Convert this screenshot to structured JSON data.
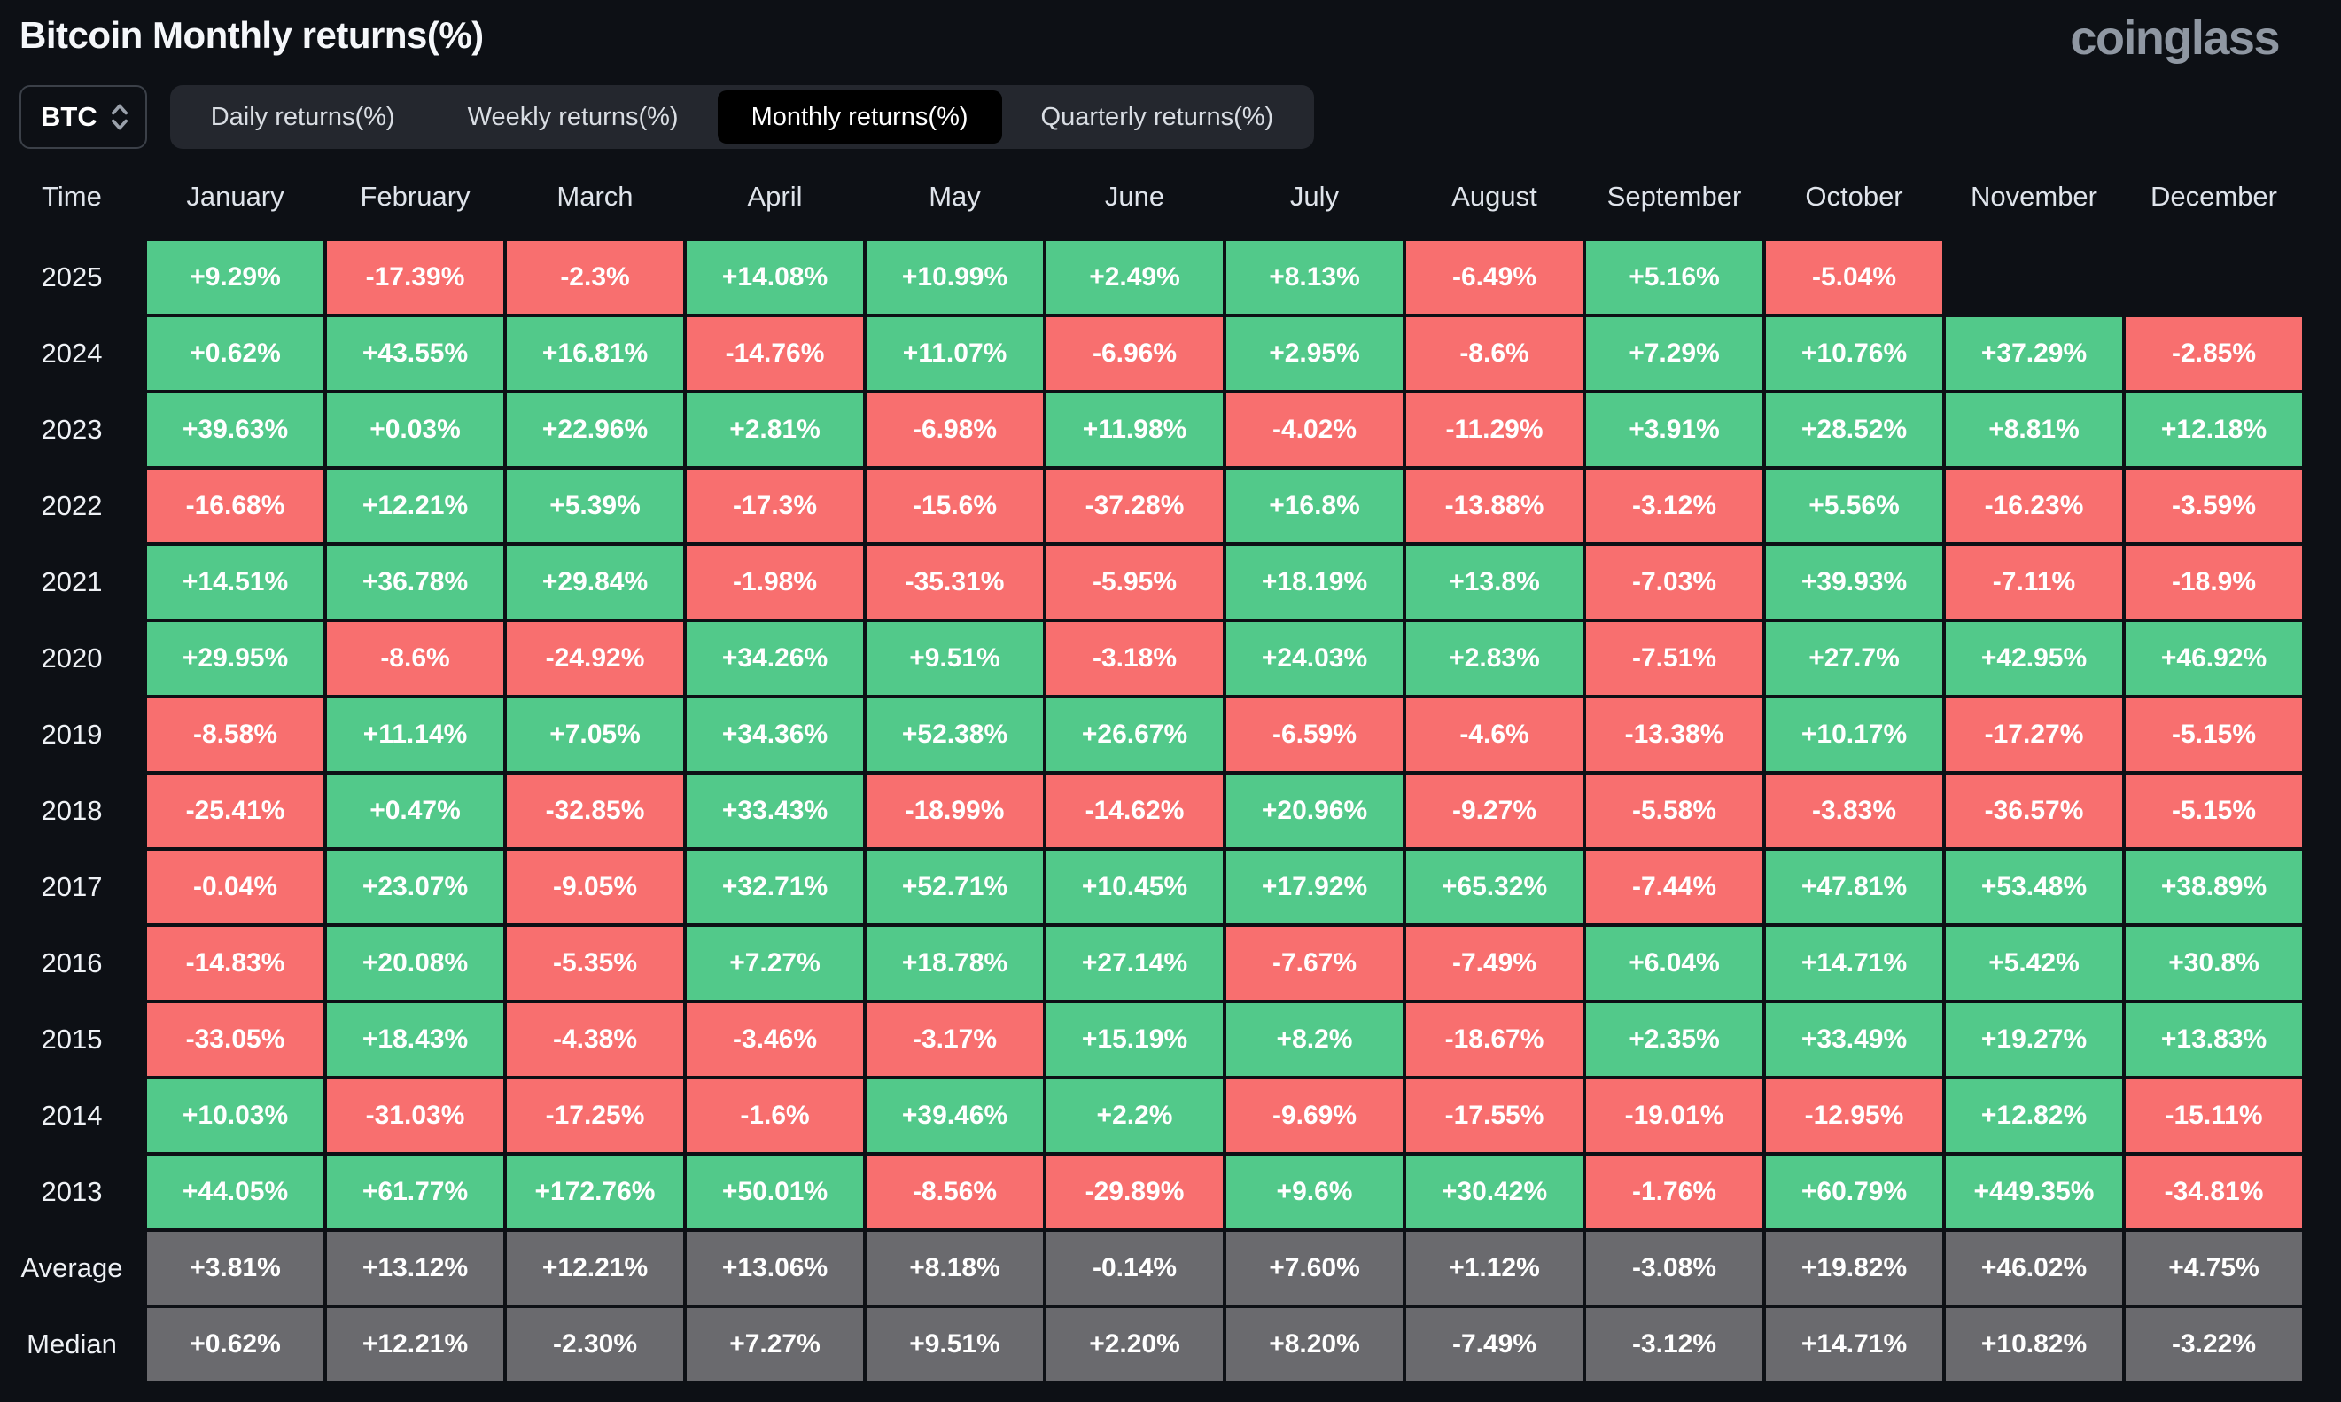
{
  "page": {
    "title": "Bitcoin Monthly returns(%)",
    "logo": "coinglass"
  },
  "controls": {
    "symbol_select": {
      "value": "BTC",
      "icon": "up-down-chevron-icon"
    },
    "tabs": [
      {
        "label": "Daily returns(%)",
        "active": false
      },
      {
        "label": "Weekly returns(%)",
        "active": false
      },
      {
        "label": "Monthly returns(%)",
        "active": true
      },
      {
        "label": "Quarterly returns(%)",
        "active": false
      }
    ]
  },
  "colors": {
    "positive": "#52c98a",
    "negative": "#f86f6f",
    "neutral": "#6a6a6e",
    "background": "#0d1015",
    "tab_bar": "#24272e",
    "tab_active": "#000000"
  },
  "table": {
    "columns": [
      "Time",
      "January",
      "February",
      "March",
      "April",
      "May",
      "June",
      "July",
      "August",
      "September",
      "October",
      "November",
      "December"
    ],
    "rows": [
      {
        "label": "2025",
        "kind": "year",
        "cells": [
          "+9.29%",
          "-17.39%",
          "-2.3%",
          "+14.08%",
          "+10.99%",
          "+2.49%",
          "+8.13%",
          "-6.49%",
          "+5.16%",
          "-5.04%",
          "",
          ""
        ]
      },
      {
        "label": "2024",
        "kind": "year",
        "cells": [
          "+0.62%",
          "+43.55%",
          "+16.81%",
          "-14.76%",
          "+11.07%",
          "-6.96%",
          "+2.95%",
          "-8.6%",
          "+7.29%",
          "+10.76%",
          "+37.29%",
          "-2.85%"
        ]
      },
      {
        "label": "2023",
        "kind": "year",
        "cells": [
          "+39.63%",
          "+0.03%",
          "+22.96%",
          "+2.81%",
          "-6.98%",
          "+11.98%",
          "-4.02%",
          "-11.29%",
          "+3.91%",
          "+28.52%",
          "+8.81%",
          "+12.18%"
        ]
      },
      {
        "label": "2022",
        "kind": "year",
        "cells": [
          "-16.68%",
          "+12.21%",
          "+5.39%",
          "-17.3%",
          "-15.6%",
          "-37.28%",
          "+16.8%",
          "-13.88%",
          "-3.12%",
          "+5.56%",
          "-16.23%",
          "-3.59%"
        ]
      },
      {
        "label": "2021",
        "kind": "year",
        "cells": [
          "+14.51%",
          "+36.78%",
          "+29.84%",
          "-1.98%",
          "-35.31%",
          "-5.95%",
          "+18.19%",
          "+13.8%",
          "-7.03%",
          "+39.93%",
          "-7.11%",
          "-18.9%"
        ]
      },
      {
        "label": "2020",
        "kind": "year",
        "cells": [
          "+29.95%",
          "-8.6%",
          "-24.92%",
          "+34.26%",
          "+9.51%",
          "-3.18%",
          "+24.03%",
          "+2.83%",
          "-7.51%",
          "+27.7%",
          "+42.95%",
          "+46.92%"
        ]
      },
      {
        "label": "2019",
        "kind": "year",
        "cells": [
          "-8.58%",
          "+11.14%",
          "+7.05%",
          "+34.36%",
          "+52.38%",
          "+26.67%",
          "-6.59%",
          "-4.6%",
          "-13.38%",
          "+10.17%",
          "-17.27%",
          "-5.15%"
        ]
      },
      {
        "label": "2018",
        "kind": "year",
        "cells": [
          "-25.41%",
          "+0.47%",
          "-32.85%",
          "+33.43%",
          "-18.99%",
          "-14.62%",
          "+20.96%",
          "-9.27%",
          "-5.58%",
          "-3.83%",
          "-36.57%",
          "-5.15%"
        ]
      },
      {
        "label": "2017",
        "kind": "year",
        "cells": [
          "-0.04%",
          "+23.07%",
          "-9.05%",
          "+32.71%",
          "+52.71%",
          "+10.45%",
          "+17.92%",
          "+65.32%",
          "-7.44%",
          "+47.81%",
          "+53.48%",
          "+38.89%"
        ]
      },
      {
        "label": "2016",
        "kind": "year",
        "cells": [
          "-14.83%",
          "+20.08%",
          "-5.35%",
          "+7.27%",
          "+18.78%",
          "+27.14%",
          "-7.67%",
          "-7.49%",
          "+6.04%",
          "+14.71%",
          "+5.42%",
          "+30.8%"
        ]
      },
      {
        "label": "2015",
        "kind": "year",
        "cells": [
          "-33.05%",
          "+18.43%",
          "-4.38%",
          "-3.46%",
          "-3.17%",
          "+15.19%",
          "+8.2%",
          "-18.67%",
          "+2.35%",
          "+33.49%",
          "+19.27%",
          "+13.83%"
        ]
      },
      {
        "label": "2014",
        "kind": "year",
        "cells": [
          "+10.03%",
          "-31.03%",
          "-17.25%",
          "-1.6%",
          "+39.46%",
          "+2.2%",
          "-9.69%",
          "-17.55%",
          "-19.01%",
          "-12.95%",
          "+12.82%",
          "-15.11%"
        ]
      },
      {
        "label": "2013",
        "kind": "year",
        "cells": [
          "+44.05%",
          "+61.77%",
          "+172.76%",
          "+50.01%",
          "-8.56%",
          "-29.89%",
          "+9.6%",
          "+30.42%",
          "-1.76%",
          "+60.79%",
          "+449.35%",
          "-34.81%"
        ]
      },
      {
        "label": "Average",
        "kind": "summary",
        "cells": [
          "+3.81%",
          "+13.12%",
          "+12.21%",
          "+13.06%",
          "+8.18%",
          "-0.14%",
          "+7.60%",
          "+1.12%",
          "-3.08%",
          "+19.82%",
          "+46.02%",
          "+4.75%"
        ]
      },
      {
        "label": "Median",
        "kind": "summary",
        "cells": [
          "+0.62%",
          "+12.21%",
          "-2.30%",
          "+7.27%",
          "+9.51%",
          "+2.20%",
          "+8.20%",
          "-7.49%",
          "-3.12%",
          "+14.71%",
          "+10.82%",
          "-3.22%"
        ]
      }
    ]
  }
}
